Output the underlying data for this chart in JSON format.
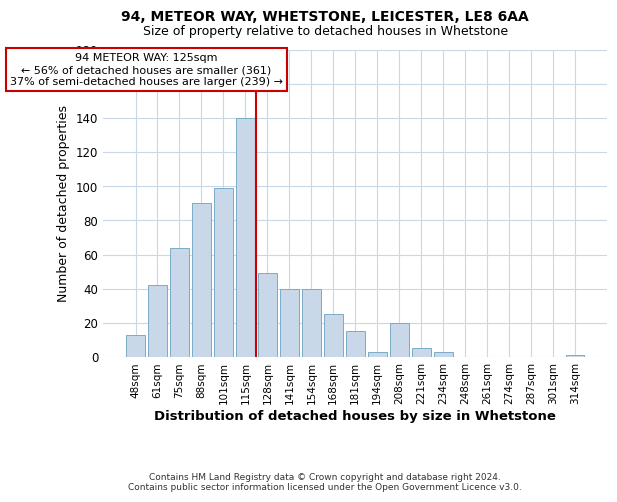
{
  "title1": "94, METEOR WAY, WHETSTONE, LEICESTER, LE8 6AA",
  "title2": "Size of property relative to detached houses in Whetstone",
  "xlabel": "Distribution of detached houses by size in Whetstone",
  "ylabel": "Number of detached properties",
  "categories": [
    "48sqm",
    "61sqm",
    "75sqm",
    "88sqm",
    "101sqm",
    "115sqm",
    "128sqm",
    "141sqm",
    "154sqm",
    "168sqm",
    "181sqm",
    "194sqm",
    "208sqm",
    "221sqm",
    "234sqm",
    "248sqm",
    "261sqm",
    "274sqm",
    "287sqm",
    "301sqm",
    "314sqm"
  ],
  "values": [
    13,
    42,
    64,
    90,
    99,
    140,
    49,
    40,
    40,
    25,
    15,
    3,
    20,
    5,
    3,
    0,
    0,
    0,
    0,
    0,
    1
  ],
  "bar_color": "#c8d8e8",
  "bar_edge_color": "#7aacc8",
  "vline_color": "#cc0000",
  "annotation_line1": "94 METEOR WAY: 125sqm",
  "annotation_line2": "← 56% of detached houses are smaller (361)",
  "annotation_line3": "37% of semi-detached houses are larger (239) →",
  "annotation_box_color": "#ffffff",
  "annotation_box_edge_color": "#cc0000",
  "ylim": [
    0,
    180
  ],
  "yticks": [
    0,
    20,
    40,
    60,
    80,
    100,
    120,
    140,
    160,
    180
  ],
  "footer": "Contains HM Land Registry data © Crown copyright and database right 2024.\nContains public sector information licensed under the Open Government Licence v3.0.",
  "bg_color": "#ffffff",
  "grid_color": "#c8d8e8"
}
